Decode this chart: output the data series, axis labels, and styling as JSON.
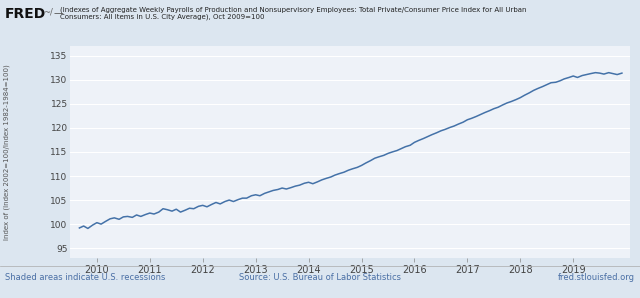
{
  "title_line1": "(Indexes of Aggregate Weekly Payrolls of Production and Nonsupervisory Employees: Total Private/Consumer Price Index for All Urban",
  "title_line2": "Consumers: All Items in U.S. City Average), Oct 2009=100",
  "ylabel": "Index of (Index 2002=100/Index 1982-1984=100)",
  "ylim": [
    93,
    137
  ],
  "yticks": [
    95,
    100,
    105,
    110,
    115,
    120,
    125,
    130,
    135
  ],
  "xlim_start": 2009.5,
  "xlim_end": 2020.08,
  "xtick_years": [
    2010,
    2011,
    2012,
    2013,
    2014,
    2015,
    2016,
    2017,
    2018,
    2019
  ],
  "line_color": "#4472a8",
  "line_width": 1.1,
  "background_color": "#dce6f0",
  "plot_bg_color": "#eef2f8",
  "grid_color": "#ffffff",
  "footer_left": "Shaded areas indicate U.S. recessions",
  "footer_center": "Source: U.S. Bureau of Labor Statistics",
  "footer_right": "fred.stlouisfed.org",
  "fred_text": "FRED",
  "footer_color": "#4a6fa5",
  "data_x": [
    2009.67,
    2009.75,
    2009.83,
    2009.92,
    2010.0,
    2010.08,
    2010.17,
    2010.25,
    2010.33,
    2010.42,
    2010.5,
    2010.58,
    2010.67,
    2010.75,
    2010.83,
    2010.92,
    2011.0,
    2011.08,
    2011.17,
    2011.25,
    2011.33,
    2011.42,
    2011.5,
    2011.58,
    2011.67,
    2011.75,
    2011.83,
    2011.92,
    2012.0,
    2012.08,
    2012.17,
    2012.25,
    2012.33,
    2012.42,
    2012.5,
    2012.58,
    2012.67,
    2012.75,
    2012.83,
    2012.92,
    2013.0,
    2013.08,
    2013.17,
    2013.25,
    2013.33,
    2013.42,
    2013.5,
    2013.58,
    2013.67,
    2013.75,
    2013.83,
    2013.92,
    2014.0,
    2014.08,
    2014.17,
    2014.25,
    2014.33,
    2014.42,
    2014.5,
    2014.58,
    2014.67,
    2014.75,
    2014.83,
    2014.92,
    2015.0,
    2015.08,
    2015.17,
    2015.25,
    2015.33,
    2015.42,
    2015.5,
    2015.58,
    2015.67,
    2015.75,
    2015.83,
    2015.92,
    2016.0,
    2016.08,
    2016.17,
    2016.25,
    2016.33,
    2016.42,
    2016.5,
    2016.58,
    2016.67,
    2016.75,
    2016.83,
    2016.92,
    2017.0,
    2017.08,
    2017.17,
    2017.25,
    2017.33,
    2017.42,
    2017.5,
    2017.58,
    2017.67,
    2017.75,
    2017.83,
    2017.92,
    2018.0,
    2018.08,
    2018.17,
    2018.25,
    2018.33,
    2018.42,
    2018.5,
    2018.58,
    2018.67,
    2018.75,
    2018.83,
    2018.92,
    2019.0,
    2019.08,
    2019.17,
    2019.25,
    2019.33,
    2019.42,
    2019.5,
    2019.58,
    2019.67,
    2019.75,
    2019.83,
    2019.92
  ],
  "data_y": [
    99.2,
    99.6,
    99.1,
    99.8,
    100.3,
    100.0,
    100.6,
    101.1,
    101.3,
    101.0,
    101.5,
    101.6,
    101.4,
    101.9,
    101.6,
    102.0,
    102.3,
    102.1,
    102.5,
    103.2,
    103.0,
    102.7,
    103.1,
    102.5,
    102.9,
    103.3,
    103.2,
    103.7,
    103.9,
    103.6,
    104.1,
    104.5,
    104.2,
    104.7,
    105.0,
    104.7,
    105.1,
    105.4,
    105.4,
    105.9,
    106.1,
    105.9,
    106.4,
    106.7,
    107.0,
    107.2,
    107.5,
    107.3,
    107.6,
    107.9,
    108.1,
    108.5,
    108.7,
    108.4,
    108.8,
    109.2,
    109.5,
    109.8,
    110.2,
    110.5,
    110.8,
    111.2,
    111.5,
    111.8,
    112.2,
    112.7,
    113.2,
    113.7,
    114.0,
    114.3,
    114.7,
    115.0,
    115.3,
    115.7,
    116.1,
    116.4,
    117.0,
    117.4,
    117.8,
    118.2,
    118.6,
    119.0,
    119.4,
    119.7,
    120.1,
    120.4,
    120.8,
    121.2,
    121.7,
    122.0,
    122.4,
    122.8,
    123.2,
    123.6,
    124.0,
    124.3,
    124.8,
    125.2,
    125.5,
    125.9,
    126.3,
    126.8,
    127.3,
    127.8,
    128.2,
    128.6,
    129.0,
    129.4,
    129.5,
    129.8,
    130.2,
    130.5,
    130.8,
    130.5,
    130.9,
    131.1,
    131.3,
    131.5,
    131.4,
    131.2,
    131.5,
    131.3,
    131.1,
    131.4
  ]
}
